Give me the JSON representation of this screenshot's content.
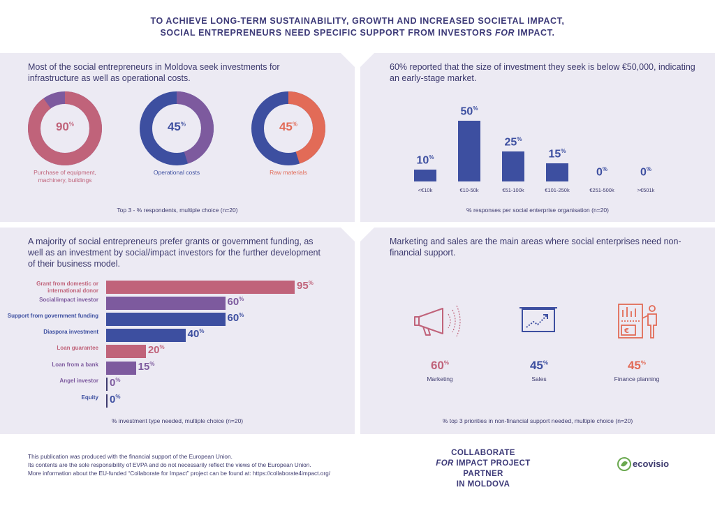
{
  "header": {
    "line1": "TO ACHIEVE LONG-TERM SUSTAINABILITY, GROWTH AND INCREASED SOCIETAL IMPACT,",
    "line2_pre": "SOCIAL ENTREPRENEURS NEED SPECIFIC SUPPORT FROM INVESTORS ",
    "line2_em": "FOR",
    "line2_post": " IMPACT."
  },
  "investment_needs": {
    "title": "Most of the social entrepreneurs in Moldova seek investments for infrastructure as well as operational costs.",
    "note": "Top 3 - % respondents, multiple choice (n=20)"
  },
  "investment_size": {
    "title": "60% reported that the size of investment they seek is below €50,000, indicating an early-stage market.",
    "note": "% responses per social enterprise organisation (n=20)"
  },
  "investment_type": {
    "title": "A majority of social entrepreneurs prefer grants or government funding, as well as an investment by social/impact investors for the further development of their business model.",
    "note": "% investment type needed, multiple choice (n=20)"
  },
  "non_financial": {
    "title": "Marketing and sales are the main areas where social enterprises need non-financial support.",
    "note": "% top 3 priorities in non-financial support needed, multiple choice (n=20)"
  },
  "pct_sign": "%",
  "colors": {
    "pink": "#c0637a",
    "purple": "#7d5a9e",
    "blue": "#3d4fa0",
    "orange": "#e26b57",
    "panel": "#eceaf3",
    "text": "#3d3a6e"
  },
  "icons": [
    "megaphone-icon",
    "chart-board-icon",
    "finance-presentation-icon"
  ],
  "chart_data": [
    {
      "type": "pie",
      "categories": [
        "Purchase of equipment, machinery, buildings",
        "Operational costs",
        "Raw materials"
      ],
      "values": [
        90,
        45,
        45
      ],
      "label_colors": [
        "#c0637a",
        "#3d4fa0",
        "#e26b57"
      ]
    },
    {
      "type": "bar",
      "categories": [
        "<€10k",
        "€10-50k",
        "€51-100k",
        "€101-250k",
        "€251-500k",
        ">€501k"
      ],
      "values": [
        10,
        50,
        25,
        15,
        0,
        0
      ],
      "ylim": [
        0,
        50
      ]
    },
    {
      "type": "bar",
      "orientation": "horizontal",
      "categories": [
        "Grant from domestic or international donor",
        "Social/impact investor",
        "Support from government funding",
        "Diaspora investment",
        "Loan guarantee",
        "Loan from a bank",
        "Angel investor",
        "Equity"
      ],
      "values": [
        95,
        60,
        60,
        40,
        20,
        15,
        0,
        0
      ],
      "colors": [
        "#c0637a",
        "#7d5a9e",
        "#3d4fa0",
        "#3d4fa0",
        "#c0637a",
        "#7d5a9e",
        "#7d5a9e",
        "#3d4fa0"
      ],
      "xlim": [
        0,
        95
      ]
    },
    {
      "type": "table",
      "categories": [
        "Marketing",
        "Sales",
        "Finance planning"
      ],
      "values": [
        60,
        45,
        45
      ],
      "colors": [
        "#c0637a",
        "#3d4fa0",
        "#e26b57"
      ]
    }
  ],
  "footer": {
    "line1": "This publication was produced with the financial support of the European Union.",
    "line2": "Its contents are the sole responsibility of EVPA and do not necessarily reflect the views of the European Union.",
    "line3": "More information about the EU-funded “Collaborate for Impact” project can be found at: https://collaborate4impact.org/",
    "partner_line1": "COLLABORATE",
    "partner_em": "FOR",
    "partner_line2_post": " IMPACT PROJECT PARTNER",
    "partner_line3": "IN MOLDOVA",
    "logo_text": "ecovisio"
  }
}
